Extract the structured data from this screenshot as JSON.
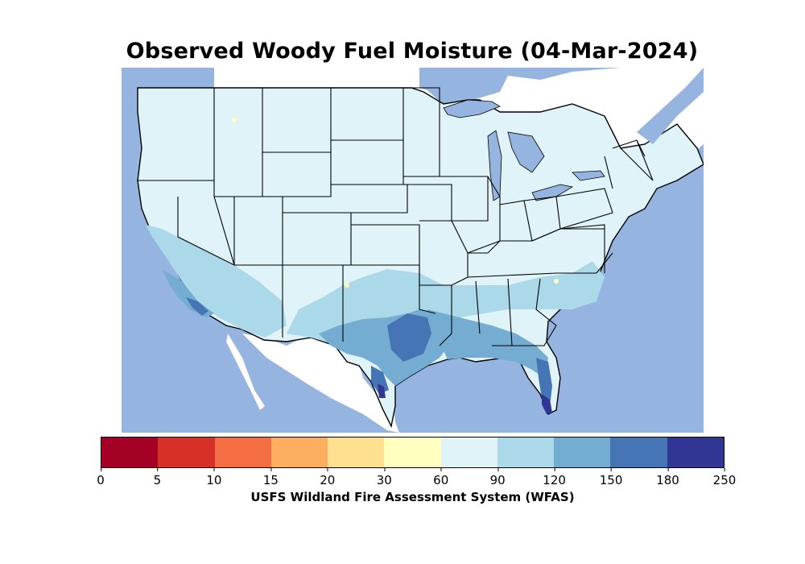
{
  "title": "Observed Woody Fuel Moisture (04-Mar-2024)",
  "colorbar": {
    "label": "USFS Wildland Fire Assessment System (WFAS)",
    "bins": [
      {
        "from": 0,
        "to": 5,
        "color": "#a50026"
      },
      {
        "from": 5,
        "to": 10,
        "color": "#d73027"
      },
      {
        "from": 10,
        "to": 15,
        "color": "#f46d43"
      },
      {
        "from": 15,
        "to": 20,
        "color": "#fdae61"
      },
      {
        "from": 20,
        "to": 30,
        "color": "#fee090"
      },
      {
        "from": 30,
        "to": 60,
        "color": "#ffffbf"
      },
      {
        "from": 60,
        "to": 90,
        "color": "#e0f3f8"
      },
      {
        "from": 90,
        "to": 120,
        "color": "#abd9e9"
      },
      {
        "from": 120,
        "to": 150,
        "color": "#74add1"
      },
      {
        "from": 150,
        "to": 180,
        "color": "#4575b4"
      },
      {
        "from": 180,
        "to": 250,
        "color": "#313695"
      }
    ],
    "ticks": [
      "0",
      "5",
      "10",
      "15",
      "20",
      "30",
      "60",
      "90",
      "120",
      "150",
      "180",
      "250"
    ]
  },
  "colors": {
    "ocean": "#95b4e0",
    "land_outside": "#ffffff",
    "borders": "#000000"
  }
}
